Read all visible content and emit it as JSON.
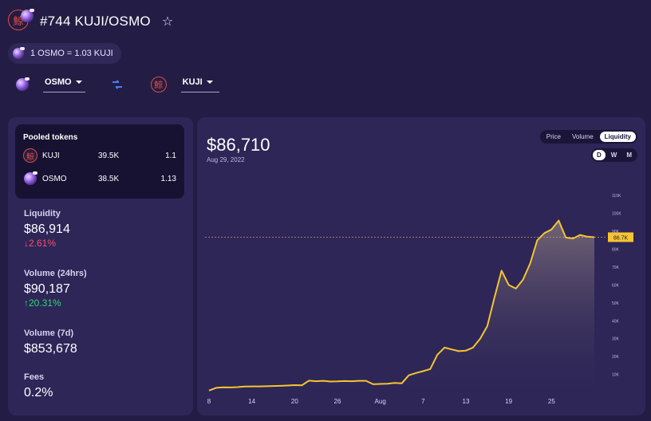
{
  "header": {
    "title": "#744 KUJI/OSMO",
    "favorite_icon": "star-outline-icon",
    "rate_text": "1 OSMO = 1.03 KUJI"
  },
  "selectors": {
    "from_token": "OSMO",
    "to_token": "KUJI",
    "swap_icon": "swap-arrows-icon"
  },
  "pooled_tokens": {
    "title": "Pooled tokens",
    "tokens": [
      {
        "name": "KUJI",
        "amount": "39.5K",
        "price": "1.1",
        "icon": "kuji-logo-icon"
      },
      {
        "name": "OSMO",
        "amount": "38.5K",
        "price": "1.13",
        "icon": "osmo-logo-icon"
      }
    ]
  },
  "stats": {
    "liquidity": {
      "label": "Liquidity",
      "value": "$86,914",
      "change": "↓2.61%"
    },
    "volume_24h": {
      "label": "Volume (24hrs)",
      "value": "$90,187",
      "change": "↑20.31%"
    },
    "volume_7d": {
      "label": "Volume (7d)",
      "value": "$853,678"
    },
    "fees": {
      "label": "Fees",
      "value": "0.2%"
    }
  },
  "chart_panel": {
    "value": "$86,710",
    "date": "Aug 29, 2022",
    "tabs": [
      "Price",
      "Volume",
      "Liquidity"
    ],
    "active_tab": "Liquidity",
    "periods": [
      "D",
      "W",
      "M"
    ],
    "active_period": "D",
    "current_label": "86.7K"
  },
  "colors": {
    "background": "#231d45",
    "panel": "#2d2657",
    "line": "#f6c431",
    "negative": "#ff4d6d",
    "positive": "#2fd674"
  },
  "chart_data": {
    "type": "area",
    "x_ticks": [
      "8",
      "14",
      "20",
      "26",
      "Aug",
      "7",
      "13",
      "19",
      "25"
    ],
    "y_ticks": [
      "10K",
      "20K",
      "30K",
      "40K",
      "50K",
      "60K",
      "70K",
      "80K",
      "90K",
      "100K",
      "110K"
    ],
    "ylim": [
      0,
      115000
    ],
    "current_value": 86700,
    "values": [
      1000,
      2500,
      2800,
      2700,
      2900,
      3200,
      3300,
      3300,
      3400,
      3500,
      3600,
      3800,
      4000,
      3900,
      6500,
      6200,
      6400,
      6000,
      6100,
      6300,
      6200,
      6400,
      6400,
      4500,
      4700,
      4800,
      5200,
      5000,
      9500,
      10800,
      11800,
      13000,
      21000,
      25000,
      24000,
      23000,
      23300,
      25000,
      30000,
      37000,
      53000,
      68000,
      60000,
      58000,
      63000,
      72000,
      85000,
      89000,
      91000,
      96000,
      86500,
      86000,
      88000,
      87000,
      86700
    ]
  }
}
